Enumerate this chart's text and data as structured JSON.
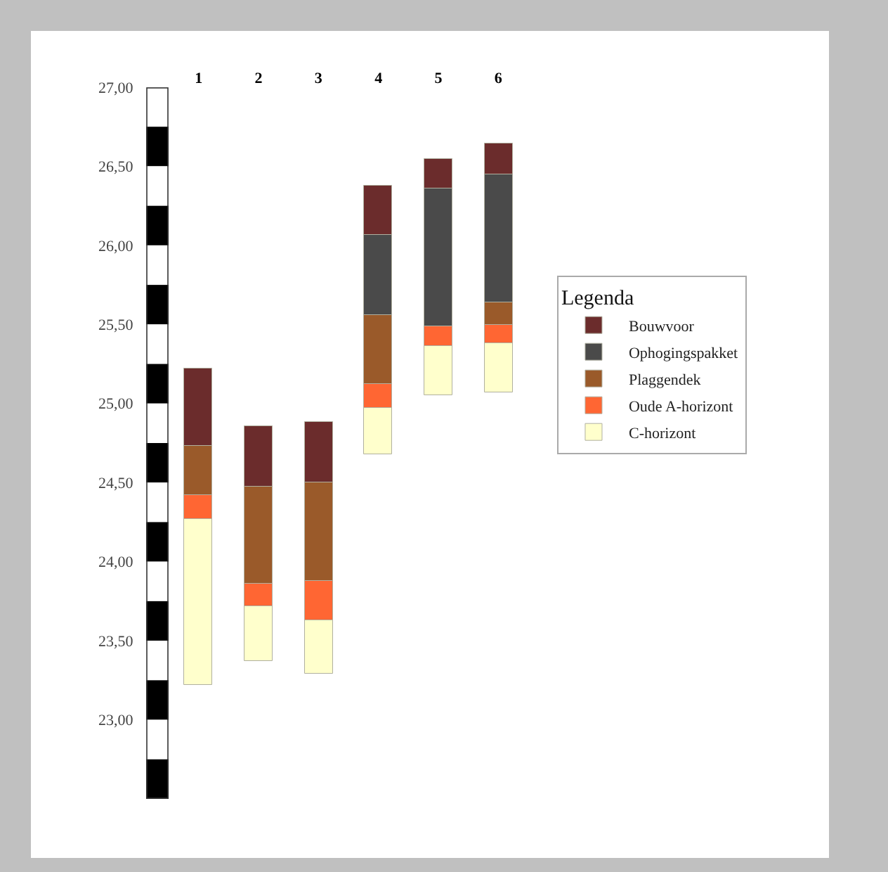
{
  "chart_data": {
    "type": "bar",
    "categories": [
      "1",
      "2",
      "3",
      "4",
      "5",
      "6"
    ],
    "series": [
      {
        "name": "C-horizont",
        "color": "#ffffcc",
        "base": [
          23.22,
          23.37,
          23.29,
          24.68,
          25.05,
          25.07
        ],
        "values": [
          1.05,
          0.35,
          0.34,
          0.29,
          0.31,
          0.31
        ]
      },
      {
        "name": "Oude A-horizont",
        "color": "#ff6633",
        "base": [
          24.27,
          23.72,
          23.63,
          24.97,
          25.36,
          25.38
        ],
        "values": [
          0.15,
          0.14,
          0.25,
          0.15,
          0.13,
          0.12
        ]
      },
      {
        "name": "Plaggendek",
        "color": "#9a5a2a",
        "base": [
          24.42,
          23.86,
          23.88,
          25.12,
          null,
          25.5
        ],
        "values": [
          0.31,
          0.61,
          0.62,
          0.44,
          null,
          0.14
        ]
      },
      {
        "name": "Ophogingspakket",
        "color": "#4a4a4a",
        "base": [
          null,
          null,
          null,
          25.56,
          25.49,
          25.64
        ],
        "values": [
          null,
          null,
          null,
          0.51,
          0.87,
          0.81
        ]
      },
      {
        "name": "Bouwvoor",
        "color": "#6b2c2c",
        "base": [
          24.73,
          24.47,
          24.5,
          26.07,
          26.36,
          26.45
        ],
        "values": [
          0.49,
          0.39,
          0.38,
          0.31,
          0.19,
          0.19
        ]
      }
    ],
    "ylim": [
      22.5,
      27.0
    ],
    "yticks": [
      {
        "value": 23,
        "label": "23,00"
      },
      {
        "value": 23.5,
        "label": "23,50"
      },
      {
        "value": 24,
        "label": "24,00"
      },
      {
        "value": 24.5,
        "label": "24,50"
      },
      {
        "value": 25,
        "label": "25,00"
      },
      {
        "value": 25.5,
        "label": "25,50"
      },
      {
        "value": 26,
        "label": "26,00"
      },
      {
        "value": 26.5,
        "label": "26,50"
      },
      {
        "value": 27,
        "label": "27,00"
      }
    ],
    "legend": "right",
    "legend_title": "Legenda",
    "grid": false
  }
}
